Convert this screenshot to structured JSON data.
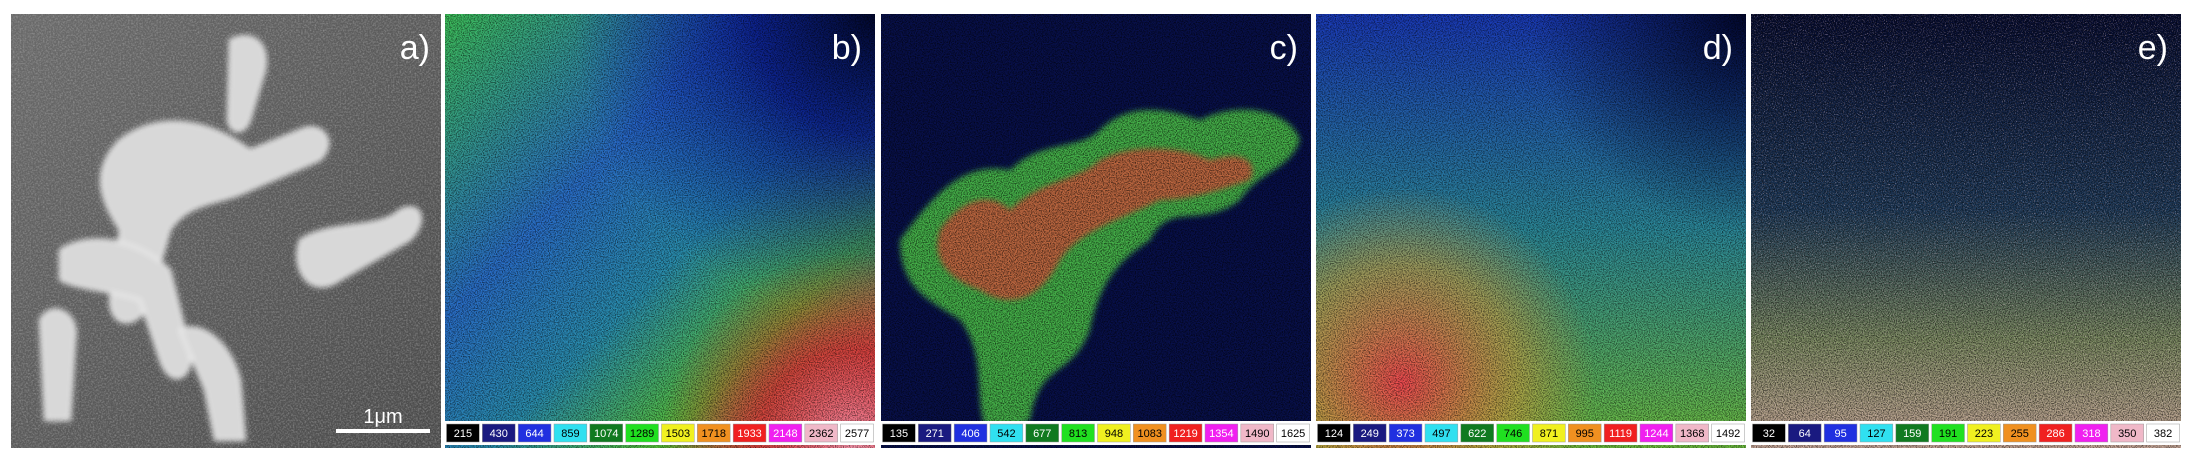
{
  "panels": [
    {
      "label": "a)",
      "scale_bar": "1μm"
    },
    {
      "label": "b)",
      "legend": [
        215,
        430,
        644,
        859,
        1074,
        1289,
        1503,
        1718,
        1933,
        2148,
        2362,
        2577
      ]
    },
    {
      "label": "c)",
      "legend": [
        135,
        271,
        406,
        542,
        677,
        813,
        948,
        1083,
        1219,
        1354,
        1490,
        1625
      ]
    },
    {
      "label": "d)",
      "legend": [
        124,
        249,
        373,
        497,
        622,
        746,
        871,
        995,
        1119,
        1244,
        1368,
        1492
      ]
    },
    {
      "label": "e)",
      "legend": [
        32,
        64,
        95,
        127,
        159,
        191,
        223,
        255,
        286,
        318,
        350,
        382
      ]
    }
  ]
}
